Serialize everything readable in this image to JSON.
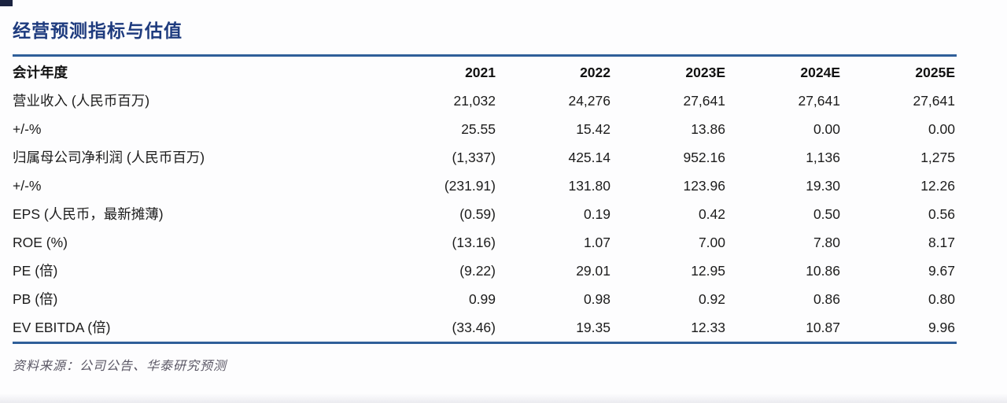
{
  "page": {
    "title": "经营预测指标与估值",
    "source_note": "资料来源：公司公告、华泰研究预测"
  },
  "colors": {
    "title_navy": "#1e3b7e",
    "rule_blue": "#2f5f99",
    "body_text": "#1c1c1c",
    "source_gray": "#5a5765"
  },
  "chart_data": {
    "type": "table",
    "title": "经营预测指标与估值",
    "header": [
      "会计年度",
      "2021",
      "2022",
      "2023E",
      "2024E",
      "2025E"
    ],
    "rows": [
      {
        "label": "营业收入 (人民币百万)",
        "values": [
          "21,032",
          "24,276",
          "27,641",
          "27,641",
          "27,641"
        ]
      },
      {
        "label": "+/-%",
        "values": [
          "25.55",
          "15.42",
          "13.86",
          "0.00",
          "0.00"
        ]
      },
      {
        "label": "归属母公司净利润 (人民币百万)",
        "values": [
          "(1,337)",
          "425.14",
          "952.16",
          "1,136",
          "1,275"
        ]
      },
      {
        "label": "+/-%",
        "values": [
          "(231.91)",
          "131.80",
          "123.96",
          "19.30",
          "12.26"
        ]
      },
      {
        "label": "EPS (人民币，最新摊薄)",
        "values": [
          "(0.59)",
          "0.19",
          "0.42",
          "0.50",
          "0.56"
        ]
      },
      {
        "label": "ROE (%)",
        "values": [
          "(13.16)",
          "1.07",
          "7.00",
          "7.80",
          "8.17"
        ]
      },
      {
        "label": "PE (倍)",
        "values": [
          "(9.22)",
          "29.01",
          "12.95",
          "10.86",
          "9.67"
        ]
      },
      {
        "label": "PB (倍)",
        "values": [
          "0.99",
          "0.98",
          "0.92",
          "0.86",
          "0.80"
        ]
      },
      {
        "label": "EV EBITDA (倍)",
        "values": [
          "(33.46)",
          "19.35",
          "12.33",
          "10.87",
          "9.96"
        ]
      }
    ],
    "source": "资料来源：公司公告、华泰研究预测"
  }
}
